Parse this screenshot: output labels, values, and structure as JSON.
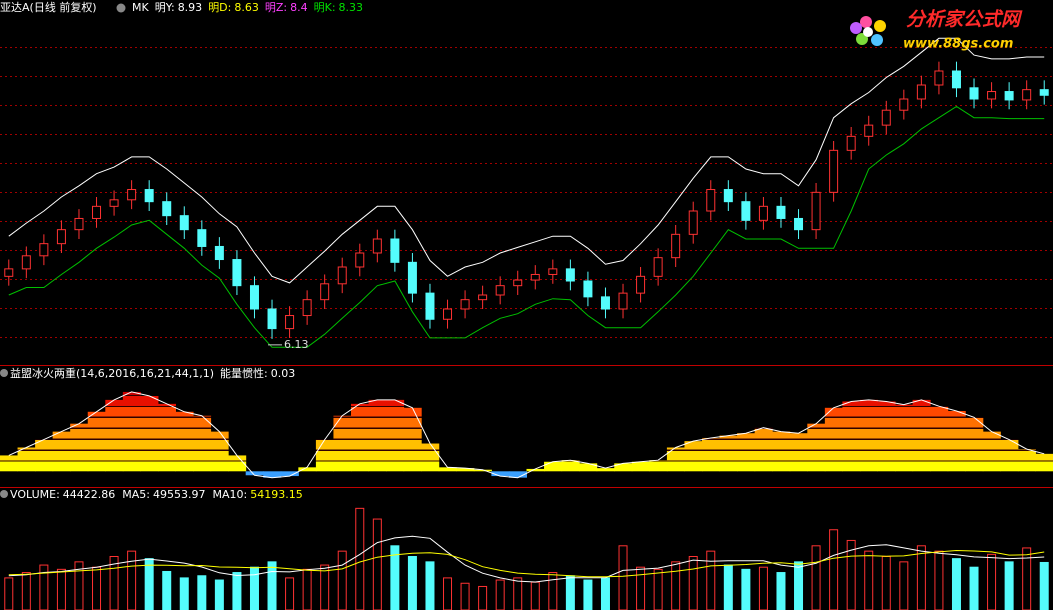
{
  "chart_data": [
    {
      "type": "candlestick",
      "title": "亚达A(日线 前复权)",
      "indicator_name": "MK",
      "indicators": [
        {
          "label": "明Y:",
          "value": 8.93,
          "color": "#ffffff"
        },
        {
          "label": "明D:",
          "value": 8.63,
          "color": "#ffff00"
        },
        {
          "label": "明Z:",
          "value": 8.4,
          "color": "#ff40ff"
        },
        {
          "label": "明K:",
          "value": 8.33,
          "color": "#00e000"
        }
      ],
      "up_color": "#ff3232",
      "down_color": "#54fcfc",
      "ylim": [
        5.85,
        9.6
      ],
      "open": [
        6.8,
        6.88,
        7.02,
        7.15,
        7.3,
        7.42,
        7.55,
        7.62,
        7.73,
        7.6,
        7.45,
        7.3,
        7.12,
        6.98,
        6.7,
        6.45,
        6.24,
        6.38,
        6.55,
        6.72,
        6.9,
        7.05,
        7.2,
        6.95,
        6.62,
        6.34,
        6.45,
        6.55,
        6.6,
        6.7,
        6.76,
        6.82,
        6.88,
        6.75,
        6.58,
        6.45,
        6.62,
        6.8,
        7.0,
        7.25,
        7.5,
        7.73,
        7.6,
        7.4,
        7.55,
        7.42,
        7.3,
        7.7,
        8.15,
        8.3,
        8.42,
        8.58,
        8.7,
        8.85,
        9.0,
        8.82,
        8.7,
        8.78,
        8.69,
        8.8
      ],
      "high": [
        6.98,
        7.12,
        7.25,
        7.4,
        7.52,
        7.65,
        7.72,
        7.83,
        7.83,
        7.7,
        7.55,
        7.4,
        7.22,
        7.08,
        6.8,
        6.55,
        6.48,
        6.65,
        6.82,
        7.0,
        7.15,
        7.3,
        7.3,
        7.05,
        6.72,
        6.55,
        6.65,
        6.7,
        6.8,
        6.86,
        6.92,
        6.98,
        6.98,
        6.85,
        6.68,
        6.72,
        6.9,
        7.1,
        7.35,
        7.6,
        7.83,
        7.83,
        7.7,
        7.65,
        7.65,
        7.52,
        7.8,
        8.25,
        8.4,
        8.52,
        8.68,
        8.8,
        8.95,
        9.1,
        9.1,
        8.92,
        8.88,
        8.88,
        8.9,
        8.9
      ],
      "low": [
        6.7,
        6.78,
        6.92,
        7.05,
        7.2,
        7.32,
        7.45,
        7.52,
        7.5,
        7.35,
        7.2,
        7.02,
        6.88,
        6.6,
        6.35,
        6.13,
        6.14,
        6.28,
        6.45,
        6.62,
        6.8,
        6.95,
        6.85,
        6.52,
        6.24,
        6.24,
        6.35,
        6.45,
        6.5,
        6.6,
        6.66,
        6.72,
        6.65,
        6.48,
        6.35,
        6.35,
        6.52,
        6.7,
        6.9,
        7.15,
        7.4,
        7.5,
        7.3,
        7.3,
        7.32,
        7.2,
        7.2,
        7.6,
        8.05,
        8.2,
        8.32,
        8.48,
        8.6,
        8.75,
        8.72,
        8.6,
        8.6,
        8.59,
        8.59,
        8.64
      ],
      "close": [
        6.88,
        7.02,
        7.15,
        7.3,
        7.42,
        7.55,
        7.62,
        7.73,
        7.6,
        7.45,
        7.3,
        7.12,
        6.98,
        6.7,
        6.45,
        6.24,
        6.38,
        6.55,
        6.72,
        6.9,
        7.05,
        7.2,
        6.95,
        6.62,
        6.34,
        6.45,
        6.55,
        6.6,
        6.7,
        6.76,
        6.82,
        6.88,
        6.75,
        6.58,
        6.45,
        6.62,
        6.8,
        7.0,
        7.25,
        7.5,
        7.73,
        7.6,
        7.4,
        7.55,
        7.42,
        7.3,
        7.7,
        8.15,
        8.3,
        8.42,
        8.58,
        8.7,
        8.85,
        9.0,
        8.82,
        8.7,
        8.78,
        8.69,
        8.8,
        8.74
      ],
      "upper_band": {
        "color": "#ffffff",
        "values": [
          7.23,
          7.37,
          7.5,
          7.65,
          7.77,
          7.9,
          7.97,
          8.08,
          8.08,
          7.95,
          7.8,
          7.65,
          7.47,
          7.33,
          7.05,
          6.8,
          6.73,
          6.9,
          7.07,
          7.25,
          7.4,
          7.55,
          7.55,
          7.3,
          6.97,
          6.8,
          6.9,
          6.95,
          7.05,
          7.11,
          7.17,
          7.23,
          7.23,
          7.1,
          6.93,
          6.97,
          7.15,
          7.35,
          7.6,
          7.85,
          8.08,
          8.08,
          7.95,
          7.9,
          7.9,
          7.77,
          8.05,
          8.5,
          8.65,
          8.77,
          8.93,
          9.05,
          9.2,
          9.35,
          9.35,
          9.17,
          9.13,
          9.13,
          9.15,
          9.15
        ]
      },
      "lower_band": {
        "color": "#00c000",
        "values": [
          6.6,
          6.68,
          6.68,
          6.82,
          6.95,
          7.1,
          7.22,
          7.35,
          7.4,
          7.25,
          7.1,
          6.92,
          6.78,
          6.5,
          6.25,
          6.04,
          6.04,
          6.04,
          6.18,
          6.35,
          6.52,
          6.7,
          6.75,
          6.42,
          6.14,
          6.14,
          6.14,
          6.25,
          6.35,
          6.4,
          6.5,
          6.56,
          6.55,
          6.38,
          6.25,
          6.25,
          6.25,
          6.42,
          6.6,
          6.8,
          7.05,
          7.3,
          7.2,
          7.2,
          7.2,
          7.1,
          7.1,
          7.1,
          7.5,
          7.95,
          8.1,
          8.22,
          8.38,
          8.5,
          8.62,
          8.5,
          8.5,
          8.49,
          8.49,
          8.49
        ]
      }
    },
    {
      "type": "area",
      "title": "益盟冰火两重(14,6,2016,16,21,44,1,1)",
      "indicator_label": "能量惯性:",
      "indicator_value": 0.03,
      "ylim": [
        -16,
        110
      ],
      "colors": [
        "#ffff00",
        "#ffe000",
        "#ffc000",
        "#ff9800",
        "#ff7000",
        "#ff4800",
        "#e81000",
        "#c80000"
      ],
      "negative_color": "#3aa0ff",
      "outline_color": "#ffffff",
      "values": [
        20,
        30,
        40,
        50,
        60,
        75,
        90,
        100,
        95,
        85,
        75,
        70,
        50,
        20,
        -5,
        -8,
        -6,
        5,
        40,
        70,
        85,
        90,
        90,
        80,
        35,
        5,
        4,
        2,
        -6,
        -8,
        3,
        12,
        14,
        10,
        4,
        10,
        12,
        14,
        30,
        38,
        42,
        45,
        48,
        55,
        50,
        48,
        60,
        80,
        88,
        90,
        88,
        84,
        90,
        82,
        76,
        68,
        50,
        40,
        28,
        22
      ]
    },
    {
      "type": "bar",
      "ylim": [
        0,
        100000
      ],
      "volume": {
        "label": "VOLUME:",
        "values": [
          30000,
          35000,
          42000,
          38000,
          45000,
          40000,
          50000,
          55000,
          48000,
          36000,
          30000,
          32000,
          28000,
          35000,
          40000,
          45000,
          30000,
          38000,
          42000,
          55000,
          95000,
          85000,
          60000,
          50000,
          45000,
          30000,
          25000,
          22000,
          28000,
          30000,
          26000,
          35000,
          32000,
          28000,
          30000,
          60000,
          40000,
          38000,
          45000,
          50000,
          55000,
          42000,
          38000,
          40000,
          35000,
          45000,
          60000,
          75000,
          65000,
          55000,
          50000,
          45000,
          60000,
          55000,
          48000,
          40000,
          52000,
          45000,
          58000,
          44422.86
        ]
      },
      "ma5": {
        "label": "MA5:",
        "color": "#ffffff",
        "values": [
          32000,
          33000,
          35000,
          36000,
          38000,
          40000,
          43000,
          45600,
          47600,
          45800,
          43800,
          40200,
          34800,
          32200,
          33000,
          36000,
          35600,
          37600,
          39000,
          42000,
          52000,
          63000,
          67400,
          69000,
          67000,
          54000,
          42000,
          34400,
          30000,
          27000,
          26200,
          28200,
          30200,
          30200,
          30200,
          37000,
          38000,
          39200,
          42600,
          46600,
          45600,
          46000,
          46000,
          46000,
          42000,
          40000,
          43600,
          51000,
          56000,
          60000,
          61000,
          58000,
          55000,
          53000,
          51600,
          49600,
          49000,
          48000,
          48600,
          49553.97
        ]
      },
      "ma10": {
        "label": "MA10:",
        "color": "#ffff00",
        "values": [
          33000,
          33500,
          34500,
          35500,
          36500,
          37500,
          39000,
          41000,
          42000,
          41900,
          41400,
          41600,
          40200,
          39900,
          39400,
          39900,
          38500,
          37100,
          36500,
          38400,
          44900,
          49300,
          51500,
          53000,
          53500,
          52000,
          47000,
          40500,
          37000,
          34500,
          33500,
          33000,
          32000,
          31000,
          31000,
          31500,
          33000,
          34600,
          36300,
          38300,
          41200,
          41900,
          42500,
          43700,
          44200,
          42700,
          44700,
          48400,
          50400,
          50800,
          50300,
          50600,
          52800,
          54300,
          55600,
          55100,
          54300,
          51300,
          51600,
          54193.15
        ]
      }
    }
  ],
  "watermark": {
    "title": "分析家公式网",
    "url": "www.88gs.com"
  }
}
